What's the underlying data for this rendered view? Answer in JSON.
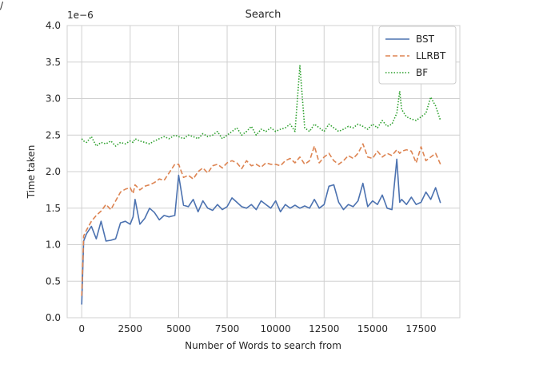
{
  "page": {
    "corner_mark": "/"
  },
  "chart_data": {
    "type": "line",
    "title": "Search",
    "xlabel": "Number of Words to search from",
    "ylabel": "Time taken",
    "y_scale_label": "1e−6",
    "xlim": [
      -750,
      19500
    ],
    "ylim": [
      0.0,
      4.0
    ],
    "x_ticks": [
      0,
      2500,
      5000,
      7500,
      10000,
      12500,
      15000,
      17500
    ],
    "x_tick_labels": [
      "0",
      "2500",
      "5000",
      "7500",
      "10000",
      "12500",
      "15000",
      "17500"
    ],
    "y_ticks": [
      0.0,
      0.5,
      1.0,
      1.5,
      2.0,
      2.5,
      3.0,
      3.5,
      4.0
    ],
    "y_tick_labels": [
      "0.0",
      "0.5",
      "1.0",
      "1.5",
      "2.0",
      "2.5",
      "3.0",
      "3.5",
      "4.0"
    ],
    "grid": true,
    "legend_position": "top-right",
    "x": [
      0,
      100,
      250,
      500,
      750,
      1000,
      1250,
      1500,
      1750,
      2000,
      2250,
      2500,
      2650,
      2750,
      3000,
      3250,
      3500,
      3750,
      4000,
      4250,
      4500,
      4800,
      5000,
      5250,
      5500,
      5750,
      6000,
      6250,
      6500,
      6750,
      7000,
      7250,
      7500,
      7750,
      8000,
      8250,
      8500,
      8750,
      9000,
      9250,
      9500,
      9750,
      10000,
      10250,
      10500,
      10750,
      11000,
      11250,
      11500,
      11750,
      12000,
      12250,
      12500,
      12750,
      13000,
      13250,
      13500,
      13750,
      14000,
      14250,
      14500,
      14750,
      15000,
      15250,
      15500,
      15750,
      16000,
      16250,
      16400,
      16500,
      16750,
      17000,
      17250,
      17500,
      17750,
      18000,
      18250,
      18500
    ],
    "series": [
      {
        "name": "BST",
        "color": "#4c72b0",
        "dash": "solid",
        "values": [
          0.18,
          1.05,
          1.15,
          1.25,
          1.08,
          1.32,
          1.05,
          1.06,
          1.08,
          1.3,
          1.32,
          1.28,
          1.38,
          1.62,
          1.28,
          1.36,
          1.5,
          1.44,
          1.34,
          1.4,
          1.38,
          1.4,
          1.95,
          1.54,
          1.52,
          1.62,
          1.45,
          1.6,
          1.5,
          1.47,
          1.55,
          1.48,
          1.52,
          1.64,
          1.58,
          1.52,
          1.5,
          1.55,
          1.48,
          1.6,
          1.55,
          1.5,
          1.6,
          1.45,
          1.55,
          1.5,
          1.54,
          1.5,
          1.53,
          1.5,
          1.62,
          1.5,
          1.55,
          1.8,
          1.82,
          1.58,
          1.48,
          1.55,
          1.52,
          1.6,
          1.84,
          1.52,
          1.6,
          1.55,
          1.68,
          1.5,
          1.48,
          2.17,
          1.58,
          1.62,
          1.55,
          1.65,
          1.55,
          1.58,
          1.72,
          1.62,
          1.78,
          1.57
        ]
      },
      {
        "name": "LLRBT",
        "color": "#dd8452",
        "dash": "dashed",
        "values": [
          0.3,
          1.12,
          1.2,
          1.32,
          1.4,
          1.46,
          1.55,
          1.48,
          1.6,
          1.72,
          1.76,
          1.78,
          1.7,
          1.82,
          1.75,
          1.8,
          1.82,
          1.85,
          1.9,
          1.88,
          1.98,
          2.1,
          2.1,
          1.92,
          1.95,
          1.9,
          2.0,
          2.05,
          1.98,
          2.08,
          2.1,
          2.05,
          2.12,
          2.15,
          2.12,
          2.04,
          2.15,
          2.08,
          2.1,
          2.06,
          2.12,
          2.1,
          2.1,
          2.08,
          2.15,
          2.18,
          2.12,
          2.2,
          2.1,
          2.15,
          2.35,
          2.12,
          2.2,
          2.25,
          2.15,
          2.1,
          2.15,
          2.22,
          2.18,
          2.25,
          2.38,
          2.2,
          2.18,
          2.28,
          2.2,
          2.25,
          2.22,
          2.3,
          2.25,
          2.28,
          2.3,
          2.28,
          2.12,
          2.34,
          2.15,
          2.2,
          2.25,
          2.1
        ]
      },
      {
        "name": "BF",
        "color": "#2ca02c",
        "dash": "dotted",
        "values": [
          2.45,
          2.42,
          2.4,
          2.48,
          2.35,
          2.4,
          2.38,
          2.42,
          2.35,
          2.4,
          2.38,
          2.42,
          2.4,
          2.45,
          2.42,
          2.4,
          2.38,
          2.42,
          2.45,
          2.48,
          2.45,
          2.5,
          2.48,
          2.45,
          2.5,
          2.48,
          2.45,
          2.52,
          2.48,
          2.5,
          2.55,
          2.45,
          2.5,
          2.55,
          2.6,
          2.5,
          2.55,
          2.62,
          2.5,
          2.58,
          2.55,
          2.6,
          2.55,
          2.58,
          2.6,
          2.65,
          2.55,
          3.45,
          2.6,
          2.55,
          2.65,
          2.6,
          2.55,
          2.65,
          2.6,
          2.55,
          2.58,
          2.62,
          2.6,
          2.65,
          2.62,
          2.58,
          2.65,
          2.6,
          2.7,
          2.62,
          2.65,
          2.8,
          3.1,
          2.85,
          2.75,
          2.72,
          2.7,
          2.75,
          2.8,
          3.02,
          2.9,
          2.7
        ]
      }
    ]
  }
}
